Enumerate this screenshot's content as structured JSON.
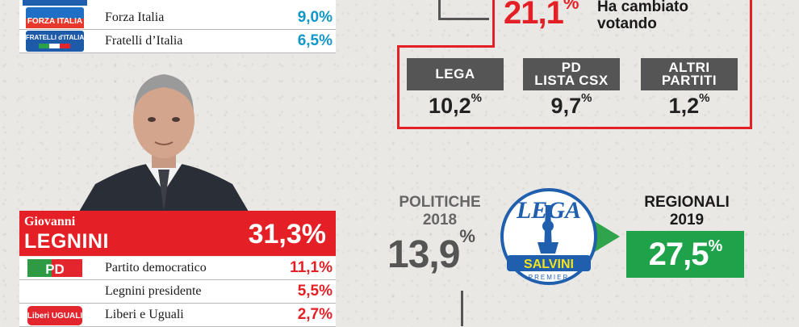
{
  "coalition_rows": [
    {
      "name": "Forza Italia",
      "pct": "9,0%",
      "logo": "forza-italia-logo",
      "logo_text": "FORZA ITALIA"
    },
    {
      "name": "Fratelli d’Italia",
      "pct": "6,5%",
      "logo": "fratelli-italia-logo",
      "logo_text": "FRATELLI d'ITALIA"
    }
  ],
  "candidate": {
    "first_name": "Giovanni",
    "last_name": "LEGNINI",
    "pct": "31,3%"
  },
  "candidate_rows": [
    {
      "name": "Partito democratico",
      "pct": "11,1%",
      "logo": "pd-logo",
      "logo_text": "PD"
    },
    {
      "name": "Legnini presidente",
      "pct": "5,5%",
      "logo": "",
      "logo_text": ""
    },
    {
      "name": "Liberi e Uguali",
      "pct": "2,7%",
      "logo": "leu-logo",
      "logo_text": "Liberi UGUALI"
    }
  ],
  "changed_vote": {
    "value": "21,1",
    "unit": "%",
    "label_line1": "Ha cambiato",
    "label_line2": "votando"
  },
  "parties": [
    {
      "label_line1": "LEGA",
      "label_line2": "",
      "value": "10,2",
      "unit": "%"
    },
    {
      "label_line1": "PD",
      "label_line2": "LISTA CSX",
      "value": "9,7",
      "unit": "%"
    },
    {
      "label_line1": "ALTRI",
      "label_line2": "PARTITI",
      "value": "1,2",
      "unit": "%"
    }
  ],
  "politiche": {
    "title_line1": "POLITICHE",
    "title_line2": "2018",
    "value": "13,9",
    "unit": "%"
  },
  "regionali": {
    "title_line1": "REGIONALI",
    "title_line2": "2019",
    "value": "27,5",
    "unit": "%"
  },
  "lega_logo": {
    "top": "LEGA",
    "band": "SALVINI",
    "bottom": "PREMIER"
  },
  "colors": {
    "red": "#e41f25",
    "blue": "#1196c8",
    "green": "#1ea24a",
    "grey": "#555555"
  }
}
